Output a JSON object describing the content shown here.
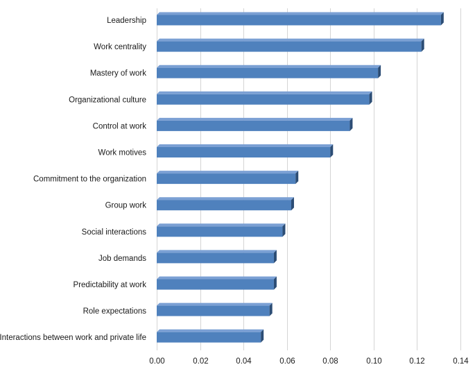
{
  "chart_data": {
    "type": "bar",
    "orientation": "horizontal",
    "style": "3d",
    "title": "",
    "xlabel": "",
    "ylabel": "",
    "xlim": [
      0,
      0.14
    ],
    "x_ticks": [
      "0.00",
      "0.02",
      "0.04",
      "0.06",
      "0.08",
      "0.10",
      "0.12",
      "0.14"
    ],
    "x_tick_values": [
      0,
      0.02,
      0.04,
      0.06,
      0.08,
      0.1,
      0.12,
      0.14
    ],
    "grid": true,
    "legend": "none",
    "bar_color": "#4f81bd",
    "bar_top_color": "#7ba0d4",
    "bar_side_color": "#2c4d75",
    "categories": [
      "Leadership",
      "Work centrality",
      "Mastery of work",
      "Organizational culture",
      "Control at work",
      "Work motives",
      "Commitment to the organization",
      "Group work",
      "Social interactions",
      "Job demands",
      "Predictability at work",
      "Role expectations",
      "Interactions between work and private life"
    ],
    "values": [
      0.131,
      0.122,
      0.102,
      0.098,
      0.089,
      0.08,
      0.064,
      0.062,
      0.058,
      0.054,
      0.054,
      0.052,
      0.048
    ]
  }
}
